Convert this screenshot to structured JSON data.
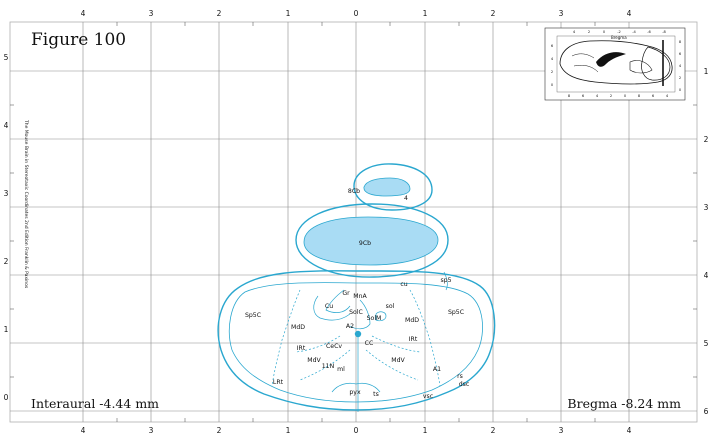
{
  "figure": {
    "title": "Figure 100",
    "interaural": "Interaural -4.44 mm",
    "bregma": "Bregma -8.24 mm",
    "credit": "The Mouse Brain in Stereotaxic Coordinates 2nd Edition   Franklin & Paxinos"
  },
  "axes": {
    "top_labels": [
      "4",
      "3",
      "2",
      "1",
      "0",
      "1",
      "2",
      "3",
      "4"
    ],
    "bottom_labels": [
      "4",
      "3",
      "2",
      "1",
      "0",
      "1",
      "2",
      "3",
      "4"
    ],
    "left_labels": [
      "5",
      "4",
      "3",
      "2",
      "1",
      "0"
    ],
    "right_labels": [
      "1",
      "2",
      "3",
      "4",
      "5",
      "6"
    ]
  },
  "structures": [
    {
      "label": "8Cb"
    },
    {
      "label": "9Cb"
    },
    {
      "label": "cu"
    },
    {
      "label": "sp5"
    },
    {
      "label": "Sp5C"
    },
    {
      "label": "Sp5C"
    },
    {
      "label": "Gr"
    },
    {
      "label": "MnA"
    },
    {
      "label": "Cu"
    },
    {
      "label": "sol"
    },
    {
      "label": "SolC"
    },
    {
      "label": "SolM"
    },
    {
      "label": "MdD"
    },
    {
      "label": "MdD"
    },
    {
      "label": "A2"
    },
    {
      "label": "CC"
    },
    {
      "label": "IRt"
    },
    {
      "label": "IRt"
    },
    {
      "label": "CeCv"
    },
    {
      "label": "MdV"
    },
    {
      "label": "MdV"
    },
    {
      "label": "11N"
    },
    {
      "label": "ml"
    },
    {
      "label": "A1"
    },
    {
      "label": "LRt"
    },
    {
      "label": "rs"
    },
    {
      "label": "dsc"
    },
    {
      "label": "pyx"
    },
    {
      "label": "ts"
    },
    {
      "label": "vsc"
    },
    {
      "label": "4"
    }
  ],
  "inset": {
    "bregma_label": "Bregma",
    "top_labels": [
      "4",
      "2",
      "0",
      "-2",
      "-4",
      "-6",
      "-8"
    ],
    "bottom_labels": [
      "8",
      "6",
      "4",
      "2",
      "0",
      "8",
      "6",
      "4"
    ],
    "left_labels": [
      "6",
      "4",
      "2",
      "0"
    ],
    "right_labels": [
      "8",
      "6",
      "4",
      "2",
      "0"
    ]
  },
  "colors": {
    "outline": "#2aa7cf",
    "fill": "#a9dcf4",
    "grid": "#8c8c8c",
    "text": "#111111"
  }
}
